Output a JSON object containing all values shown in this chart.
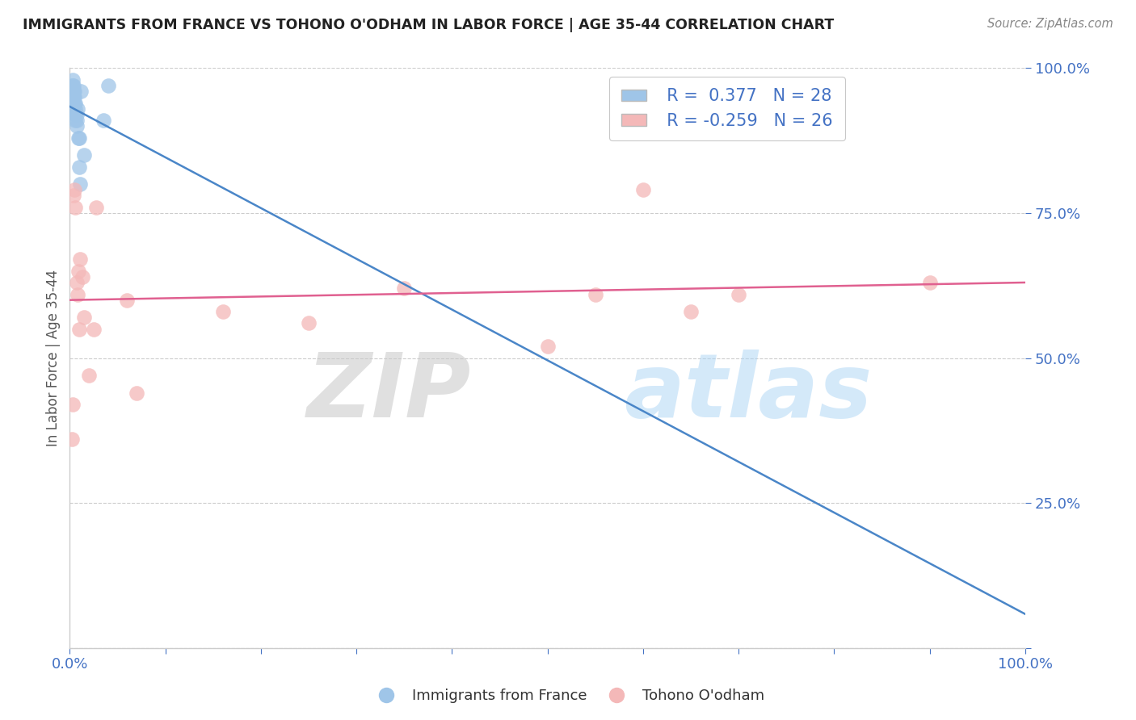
{
  "title": "IMMIGRANTS FROM FRANCE VS TOHONO O'ODHAM IN LABOR FORCE | AGE 35-44 CORRELATION CHART",
  "source": "Source: ZipAtlas.com",
  "ylabel": "In Labor Force | Age 35-44",
  "blue_R": 0.377,
  "blue_N": 28,
  "pink_R": -0.259,
  "pink_N": 26,
  "blue_color": "#9fc5e8",
  "pink_color": "#f4b8b8",
  "blue_line_color": "#4a86c8",
  "pink_line_color": "#e06090",
  "watermark_zip": "ZIP",
  "watermark_atlas": "atlas",
  "blue_scatter_x": [
    0.001,
    0.002,
    0.002,
    0.003,
    0.003,
    0.003,
    0.004,
    0.004,
    0.004,
    0.005,
    0.005,
    0.005,
    0.006,
    0.006,
    0.006,
    0.006,
    0.007,
    0.007,
    0.007,
    0.008,
    0.009,
    0.01,
    0.01,
    0.011,
    0.012,
    0.015,
    0.035,
    0.04
  ],
  "blue_scatter_y": [
    0.93,
    0.97,
    0.96,
    0.98,
    0.97,
    0.96,
    0.97,
    0.96,
    0.95,
    0.96,
    0.95,
    0.94,
    0.94,
    0.93,
    0.92,
    0.91,
    0.92,
    0.91,
    0.9,
    0.93,
    0.88,
    0.88,
    0.83,
    0.8,
    0.96,
    0.85,
    0.91,
    0.97
  ],
  "pink_scatter_x": [
    0.002,
    0.003,
    0.004,
    0.005,
    0.006,
    0.007,
    0.008,
    0.009,
    0.01,
    0.011,
    0.013,
    0.015,
    0.02,
    0.025,
    0.028,
    0.06,
    0.07,
    0.16,
    0.25,
    0.35,
    0.5,
    0.55,
    0.6,
    0.65,
    0.7,
    0.9
  ],
  "pink_scatter_y": [
    0.36,
    0.42,
    0.78,
    0.79,
    0.76,
    0.63,
    0.61,
    0.65,
    0.55,
    0.67,
    0.64,
    0.57,
    0.47,
    0.55,
    0.76,
    0.6,
    0.44,
    0.58,
    0.56,
    0.62,
    0.52,
    0.61,
    0.79,
    0.58,
    0.61,
    0.63
  ],
  "xlim": [
    0.0,
    1.0
  ],
  "ylim": [
    0.0,
    1.0
  ],
  "yticks": [
    0.0,
    0.25,
    0.5,
    0.75,
    1.0
  ],
  "ytick_labels": [
    "",
    "25.0%",
    "50.0%",
    "75.0%",
    "100.0%"
  ],
  "xtick_vals": [
    0.0,
    0.1,
    0.2,
    0.3,
    0.4,
    0.5,
    0.6,
    0.7,
    0.8,
    0.9,
    1.0
  ],
  "xtick_labels": [
    "0.0%",
    "",
    "",
    "",
    "",
    "",
    "",
    "",
    "",
    "",
    "100.0%"
  ],
  "background_color": "#ffffff",
  "grid_color": "#cccccc",
  "tick_color": "#4472c4",
  "axis_color": "#cccccc"
}
